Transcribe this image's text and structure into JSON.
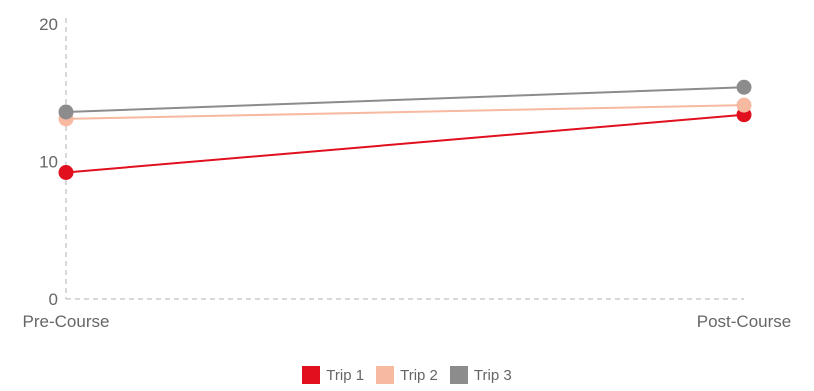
{
  "chart_data": {
    "type": "line",
    "categories": [
      "Pre-Course",
      "Post-Course"
    ],
    "ylim": [
      0,
      20
    ],
    "yticks": [
      0,
      10,
      20
    ],
    "grid": false,
    "legend_position": "bottom",
    "series": [
      {
        "name": "Trip 1",
        "color": "#e0101e",
        "values": [
          9.2,
          13.4
        ]
      },
      {
        "name": "Trip 2",
        "color": "#f7b9a0",
        "values": [
          13.1,
          14.1
        ]
      },
      {
        "name": "Trip 3",
        "color": "#8c8c8c",
        "values": [
          13.6,
          15.4
        ]
      }
    ]
  }
}
